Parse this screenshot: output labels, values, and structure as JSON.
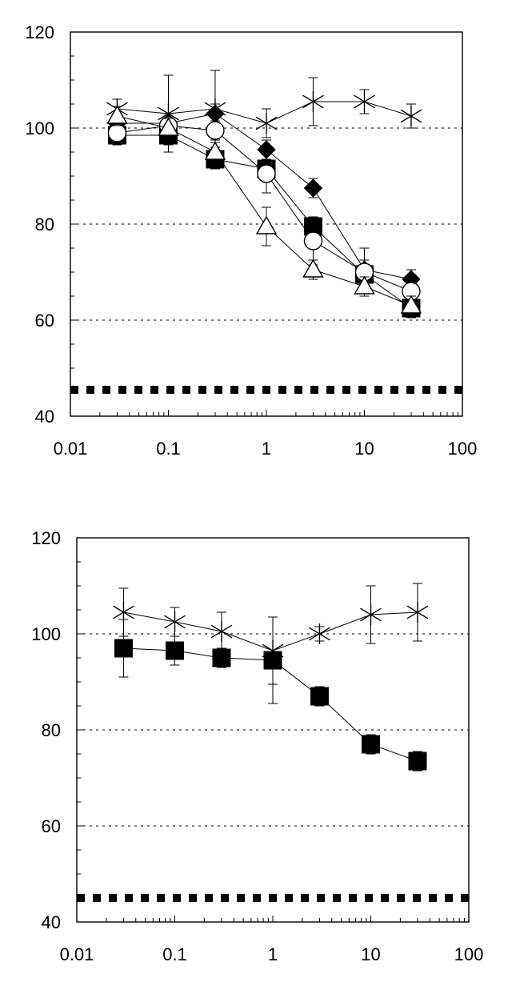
{
  "chart_data": [
    {
      "type": "scatter",
      "x_scale": "log",
      "xlim": [
        0.01,
        100
      ],
      "ylim": [
        40,
        120
      ],
      "x_tick_labels": [
        "0.01",
        "0.1",
        "1",
        "10",
        "100"
      ],
      "y_tick_labels": [
        "40",
        "60",
        "80",
        "100",
        "120"
      ],
      "gridlines_y": [
        60,
        80,
        100
      ],
      "reference_line_y": 45.5,
      "series": [
        {
          "marker": "star",
          "x": [
            0.03,
            0.1,
            0.3,
            1,
            3,
            10,
            30
          ],
          "y": [
            104,
            103,
            104,
            101,
            105.5,
            105.5,
            102.5
          ],
          "err": [
            2,
            8,
            8,
            3,
            5,
            2.5,
            2.5
          ]
        },
        {
          "marker": "diamond",
          "x": [
            0.03,
            0.1,
            0.3,
            1,
            3,
            10,
            30
          ],
          "y": [
            101,
            101,
            103,
            95.5,
            87.5,
            70.5,
            68.5
          ],
          "err": [
            2,
            2,
            2,
            2,
            2,
            2,
            2
          ]
        },
        {
          "marker": "square",
          "x": [
            0.03,
            0.1,
            0.3,
            1,
            3,
            10,
            30
          ],
          "y": [
            98.5,
            98.5,
            93.5,
            91.5,
            79.5,
            69.5,
            62.5
          ],
          "err": [
            2,
            2,
            2,
            2,
            2,
            2,
            2
          ]
        },
        {
          "marker": "circle",
          "x": [
            0.03,
            0.1,
            0.3,
            1,
            3,
            10,
            30
          ],
          "y": [
            99,
            100.5,
            99.5,
            90.5,
            76.5,
            70,
            66
          ],
          "err": [
            2,
            2,
            2,
            4,
            5,
            5,
            3
          ]
        },
        {
          "marker": "triangle",
          "x": [
            0.03,
            0.1,
            0.3,
            1,
            3,
            10,
            30
          ],
          "y": [
            102.5,
            100,
            95,
            79.5,
            70.5,
            67,
            63
          ],
          "err": [
            2,
            2,
            2,
            4,
            2,
            2,
            2
          ]
        }
      ]
    },
    {
      "type": "scatter",
      "x_scale": "log",
      "xlim": [
        0.01,
        100
      ],
      "ylim": [
        40,
        120
      ],
      "x_tick_labels": [
        "0.01",
        "0.1",
        "1",
        "10",
        "100"
      ],
      "y_tick_labels": [
        "40",
        "60",
        "80",
        "100",
        "120"
      ],
      "gridlines_y": [
        60,
        80,
        100
      ],
      "reference_line_y": 45,
      "series": [
        {
          "marker": "star",
          "x": [
            0.03,
            0.1,
            0.3,
            1,
            3,
            10,
            30
          ],
          "y": [
            104.5,
            102.5,
            100.5,
            96.5,
            100,
            104,
            104.5
          ],
          "err": [
            5,
            3,
            4,
            7,
            1.5,
            6,
            6
          ]
        },
        {
          "marker": "square",
          "x": [
            0.03,
            0.1,
            0.3,
            1,
            3,
            10,
            30
          ],
          "y": [
            97,
            96.5,
            95,
            94.5,
            87,
            77,
            73.5
          ],
          "err": [
            6,
            3,
            2,
            9,
            2,
            2,
            2
          ]
        }
      ]
    }
  ]
}
